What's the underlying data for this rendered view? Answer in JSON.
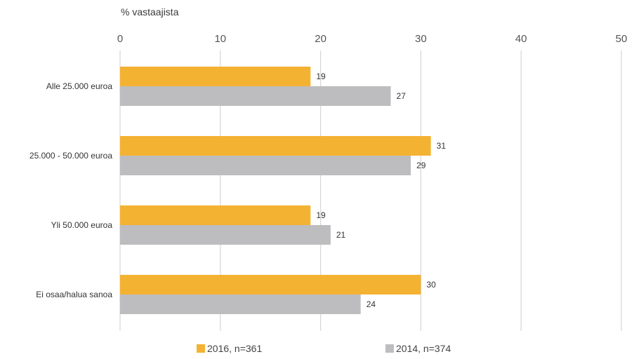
{
  "chart_data": {
    "type": "bar",
    "orientation": "horizontal",
    "axis_title": "% vastaajista",
    "x_ticks": [
      0,
      10,
      20,
      30,
      40,
      50
    ],
    "xlim": [
      0,
      50
    ],
    "grid": true,
    "categories": [
      "Alle 25.000 euroa",
      "25.000 - 50.000 euroa",
      "Yli 50.000 euroa",
      "Ei osaa/halua sanoa"
    ],
    "series": [
      {
        "name": "2016, n=361",
        "values": [
          19,
          31,
          19,
          30
        ],
        "color": "#f4b233"
      },
      {
        "name": "2014, n=374",
        "values": [
          27,
          29,
          21,
          24
        ],
        "color": "#bdbdbf"
      }
    ],
    "legend_position": "bottom"
  }
}
